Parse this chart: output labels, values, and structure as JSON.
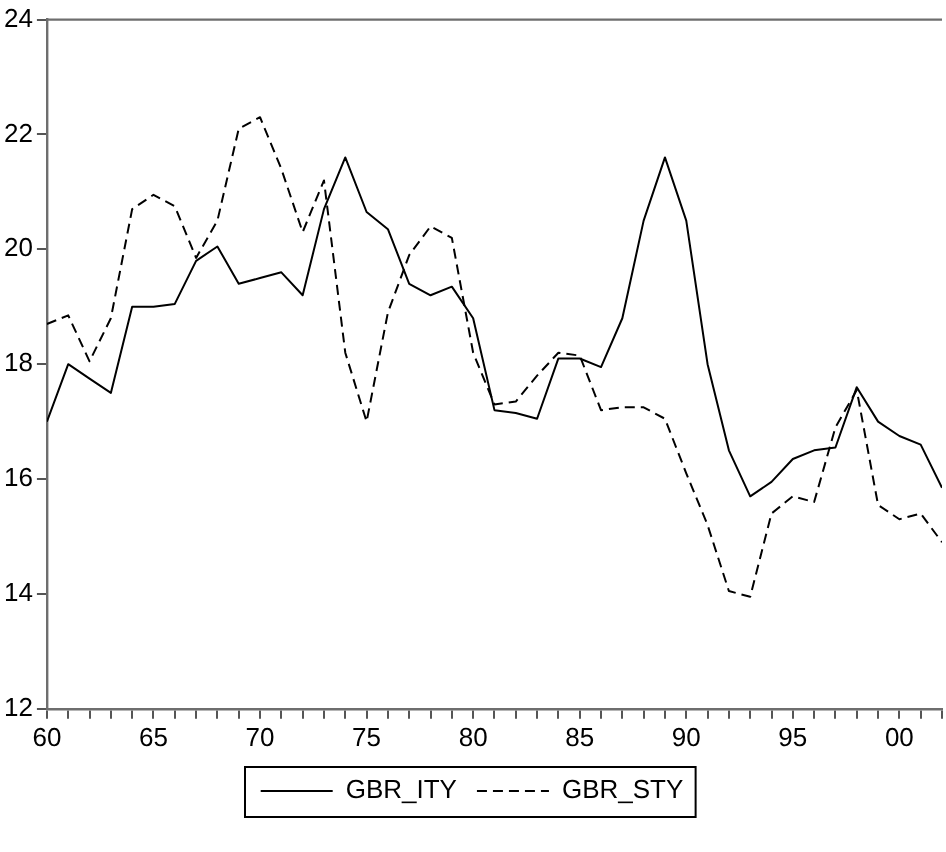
{
  "chart_data": {
    "type": "line",
    "x": [
      1960,
      1961,
      1962,
      1963,
      1964,
      1965,
      1966,
      1967,
      1968,
      1969,
      1970,
      1971,
      1972,
      1973,
      1974,
      1975,
      1976,
      1977,
      1978,
      1979,
      1980,
      1981,
      1982,
      1983,
      1984,
      1985,
      1986,
      1987,
      1988,
      1989,
      1990,
      1991,
      1992,
      1993,
      1994,
      1995,
      1996,
      1997,
      1998,
      1999,
      2000,
      2001,
      2002
    ],
    "series": [
      {
        "name": "GBR_ITY",
        "color": "#000000",
        "line_style": "solid",
        "values": [
          17.0,
          18.0,
          17.75,
          17.5,
          19.0,
          19.0,
          19.05,
          19.8,
          20.05,
          19.4,
          19.5,
          19.6,
          19.2,
          20.7,
          21.6,
          20.65,
          20.35,
          19.4,
          19.2,
          19.35,
          18.8,
          17.2,
          17.15,
          17.05,
          18.1,
          18.1,
          17.95,
          18.8,
          20.5,
          21.6,
          20.5,
          18.0,
          16.5,
          15.7,
          15.95,
          16.35,
          16.5,
          16.55,
          17.6,
          17.0,
          16.75,
          16.6,
          15.85
        ]
      },
      {
        "name": "GBR_STY",
        "color": "#000000",
        "line_style": "dashed",
        "values": [
          18.7,
          18.85,
          18.05,
          18.8,
          20.7,
          20.95,
          20.75,
          19.85,
          20.5,
          22.1,
          22.3,
          21.4,
          20.3,
          21.2,
          18.2,
          17.0,
          18.9,
          19.9,
          20.4,
          20.2,
          18.2,
          17.3,
          17.35,
          17.8,
          18.2,
          18.15,
          17.2,
          17.25,
          17.25,
          17.05,
          16.1,
          15.2,
          14.05,
          13.95,
          15.4,
          15.7,
          15.6,
          16.9,
          17.55,
          15.55,
          15.3,
          15.4,
          14.9
        ]
      }
    ],
    "xlim": [
      1960,
      2002
    ],
    "xticks": [
      {
        "value": 1960,
        "label": "60"
      },
      {
        "value": 1961,
        "label": null
      },
      {
        "value": 1962,
        "label": null
      },
      {
        "value": 1963,
        "label": null
      },
      {
        "value": 1964,
        "label": null
      },
      {
        "value": 1965,
        "label": "65"
      },
      {
        "value": 1966,
        "label": null
      },
      {
        "value": 1967,
        "label": null
      },
      {
        "value": 1968,
        "label": null
      },
      {
        "value": 1969,
        "label": null
      },
      {
        "value": 1970,
        "label": "70"
      },
      {
        "value": 1971,
        "label": null
      },
      {
        "value": 1972,
        "label": null
      },
      {
        "value": 1973,
        "label": null
      },
      {
        "value": 1974,
        "label": null
      },
      {
        "value": 1975,
        "label": "75"
      },
      {
        "value": 1976,
        "label": null
      },
      {
        "value": 1977,
        "label": null
      },
      {
        "value": 1978,
        "label": null
      },
      {
        "value": 1979,
        "label": null
      },
      {
        "value": 1980,
        "label": "80"
      },
      {
        "value": 1981,
        "label": null
      },
      {
        "value": 1982,
        "label": null
      },
      {
        "value": 1983,
        "label": null
      },
      {
        "value": 1984,
        "label": null
      },
      {
        "value": 1985,
        "label": "85"
      },
      {
        "value": 1986,
        "label": null
      },
      {
        "value": 1987,
        "label": null
      },
      {
        "value": 1988,
        "label": null
      },
      {
        "value": 1989,
        "label": null
      },
      {
        "value": 1990,
        "label": "90"
      },
      {
        "value": 1991,
        "label": null
      },
      {
        "value": 1992,
        "label": null
      },
      {
        "value": 1993,
        "label": null
      },
      {
        "value": 1994,
        "label": null
      },
      {
        "value": 1995,
        "label": "95"
      },
      {
        "value": 1996,
        "label": null
      },
      {
        "value": 1997,
        "label": null
      },
      {
        "value": 1998,
        "label": null
      },
      {
        "value": 1999,
        "label": null
      },
      {
        "value": 2000,
        "label": "00"
      },
      {
        "value": 2001,
        "label": null
      },
      {
        "value": 2002,
        "label": null
      }
    ],
    "ylim": [
      12,
      24
    ],
    "yticks": [
      12,
      14,
      16,
      18,
      20,
      22,
      24
    ],
    "grid": false,
    "legend": "bottom",
    "marker": "none"
  }
}
